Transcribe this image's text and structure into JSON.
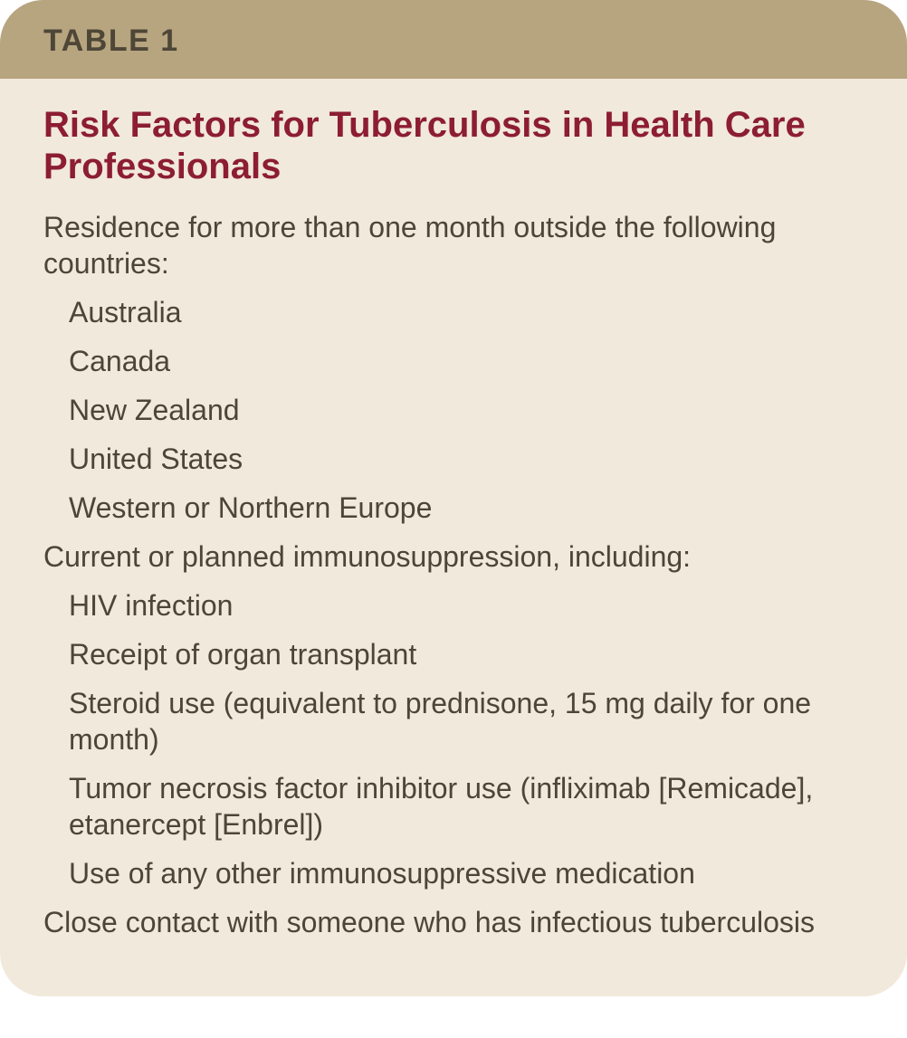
{
  "table": {
    "label": "TABLE 1",
    "title": "Risk Factors for Tuberculosis in Health Care Professionals",
    "header_bg": "#b7a580",
    "body_bg": "#f1e9db",
    "title_color": "#8c1d33",
    "text_color": "#4c4637",
    "label_color": "#4e4636",
    "label_fontsize": 34,
    "title_fontsize": 40,
    "body_fontsize": 32,
    "border_radius": 48,
    "sections": [
      {
        "text": "Residence for more than one month outside the following countries:",
        "items": [
          "Australia",
          "Canada",
          "New Zealand",
          "United States",
          "Western or Northern Europe"
        ]
      },
      {
        "text": "Current or planned immunosuppression, including:",
        "items": [
          "HIV infection",
          "Receipt of organ transplant",
          "Steroid use (equivalent to prednisone, 15 mg daily for one month)",
          "Tumor necrosis factor inhibitor use (infliximab [Remicade], etanercept [Enbrel])",
          "Use of any other immunosuppressive medication"
        ]
      },
      {
        "text": "Close contact with someone who has infectious tuberculosis",
        "items": []
      }
    ]
  }
}
